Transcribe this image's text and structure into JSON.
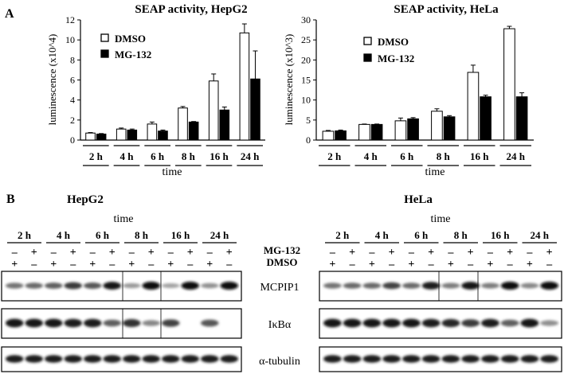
{
  "panel_a_label": "A",
  "panel_b_label": "B",
  "chart_data": [
    {
      "type": "bar",
      "title": "SEAP activity, HepG2",
      "xlabel": "time",
      "ylabel": "luminescence (x10^4)",
      "categories": [
        "2 h",
        "4 h",
        "6 h",
        "8 h",
        "16 h",
        "24 h"
      ],
      "ylim": [
        0,
        12
      ],
      "yticks": [
        0,
        2,
        4,
        6,
        8,
        10,
        12
      ],
      "legend_position": "top-left",
      "series": [
        {
          "name": "DMSO",
          "values": [
            0.7,
            1.1,
            1.6,
            3.2,
            5.9,
            10.7
          ],
          "errors": [
            0.05,
            0.1,
            0.2,
            0.15,
            0.7,
            0.9
          ],
          "fill": "#ffffff"
        },
        {
          "name": "MG-132",
          "values": [
            0.6,
            1.0,
            0.9,
            1.8,
            3.0,
            6.1
          ],
          "errors": [
            0.05,
            0.1,
            0.1,
            0.05,
            0.3,
            2.8
          ],
          "fill": "#000000"
        }
      ]
    },
    {
      "type": "bar",
      "title": "SEAP activity, HeLa",
      "xlabel": "time",
      "ylabel": "luminescence (x10^3)",
      "categories": [
        "2 h",
        "4 h",
        "6 h",
        "8 h",
        "16 h",
        "24 h"
      ],
      "ylim": [
        0,
        30
      ],
      "yticks": [
        0,
        5,
        10,
        15,
        20,
        25,
        30
      ],
      "legend_position": "top-left",
      "series": [
        {
          "name": "DMSO",
          "values": [
            2.2,
            3.9,
            4.8,
            7.2,
            16.9,
            27.8
          ],
          "errors": [
            0.2,
            0.1,
            0.7,
            0.6,
            1.8,
            0.6
          ],
          "fill": "#ffffff"
        },
        {
          "name": "MG-132",
          "values": [
            2.3,
            3.9,
            5.3,
            5.8,
            10.8,
            10.8
          ],
          "errors": [
            0.2,
            0.1,
            0.3,
            0.3,
            0.4,
            1.0
          ],
          "fill": "#000000"
        }
      ]
    }
  ],
  "blots": [
    {
      "cell_line": "HepG2",
      "time_label": "time",
      "timepoints": [
        "2 h",
        "4 h",
        "6 h",
        "8 h",
        "16 h",
        "24 h"
      ],
      "mg132_row": [
        "–",
        "+",
        "–",
        "+",
        "–",
        "+",
        "–",
        "+",
        "–",
        "+",
        "–",
        "+"
      ],
      "dmso_row": [
        "+",
        "–",
        "+",
        "–",
        "+",
        "–",
        "+",
        "–",
        "+",
        "–",
        "+",
        "–"
      ],
      "bands": {
        "MCPIP1": [
          0.45,
          0.5,
          0.55,
          0.75,
          0.6,
          0.95,
          0.25,
          1.0,
          0.2,
          1.0,
          0.3,
          1.0
        ],
        "IkBa": [
          0.95,
          0.95,
          0.95,
          0.9,
          0.9,
          0.55,
          0.8,
          0.35,
          0.7,
          0.0,
          0.6,
          0.0
        ],
        "tubulin": [
          0.9,
          0.9,
          0.9,
          0.9,
          0.9,
          0.9,
          0.9,
          0.9,
          0.9,
          0.9,
          0.9,
          0.9
        ]
      }
    },
    {
      "cell_line": "HeLa",
      "time_label": "time",
      "timepoints": [
        "2 h",
        "4 h",
        "6 h",
        "8 h",
        "16 h",
        "24 h"
      ],
      "mg132_row": [
        "–",
        "+",
        "–",
        "+",
        "–",
        "+",
        "–",
        "+",
        "–",
        "+",
        "–",
        "+"
      ],
      "dmso_row": [
        "+",
        "–",
        "+",
        "–",
        "+",
        "–",
        "+",
        "–",
        "+",
        "–",
        "+",
        "–"
      ],
      "bands": {
        "MCPIP1": [
          0.45,
          0.5,
          0.5,
          0.7,
          0.5,
          0.9,
          0.4,
          0.95,
          0.4,
          1.0,
          0.35,
          1.0
        ],
        "IkBa": [
          0.95,
          0.95,
          0.95,
          0.95,
          0.95,
          0.9,
          0.85,
          0.75,
          0.9,
          0.55,
          0.95,
          0.3
        ],
        "tubulin": [
          0.9,
          0.9,
          0.9,
          0.9,
          0.9,
          0.9,
          0.9,
          0.9,
          0.9,
          0.9,
          0.9,
          0.9
        ]
      }
    }
  ],
  "row_labels": {
    "mg132": "MG-132",
    "dmso": "DMSO",
    "mcpip1": "MCPIP1",
    "ikba": "IκBα",
    "tubulin": "α-tubulin"
  }
}
